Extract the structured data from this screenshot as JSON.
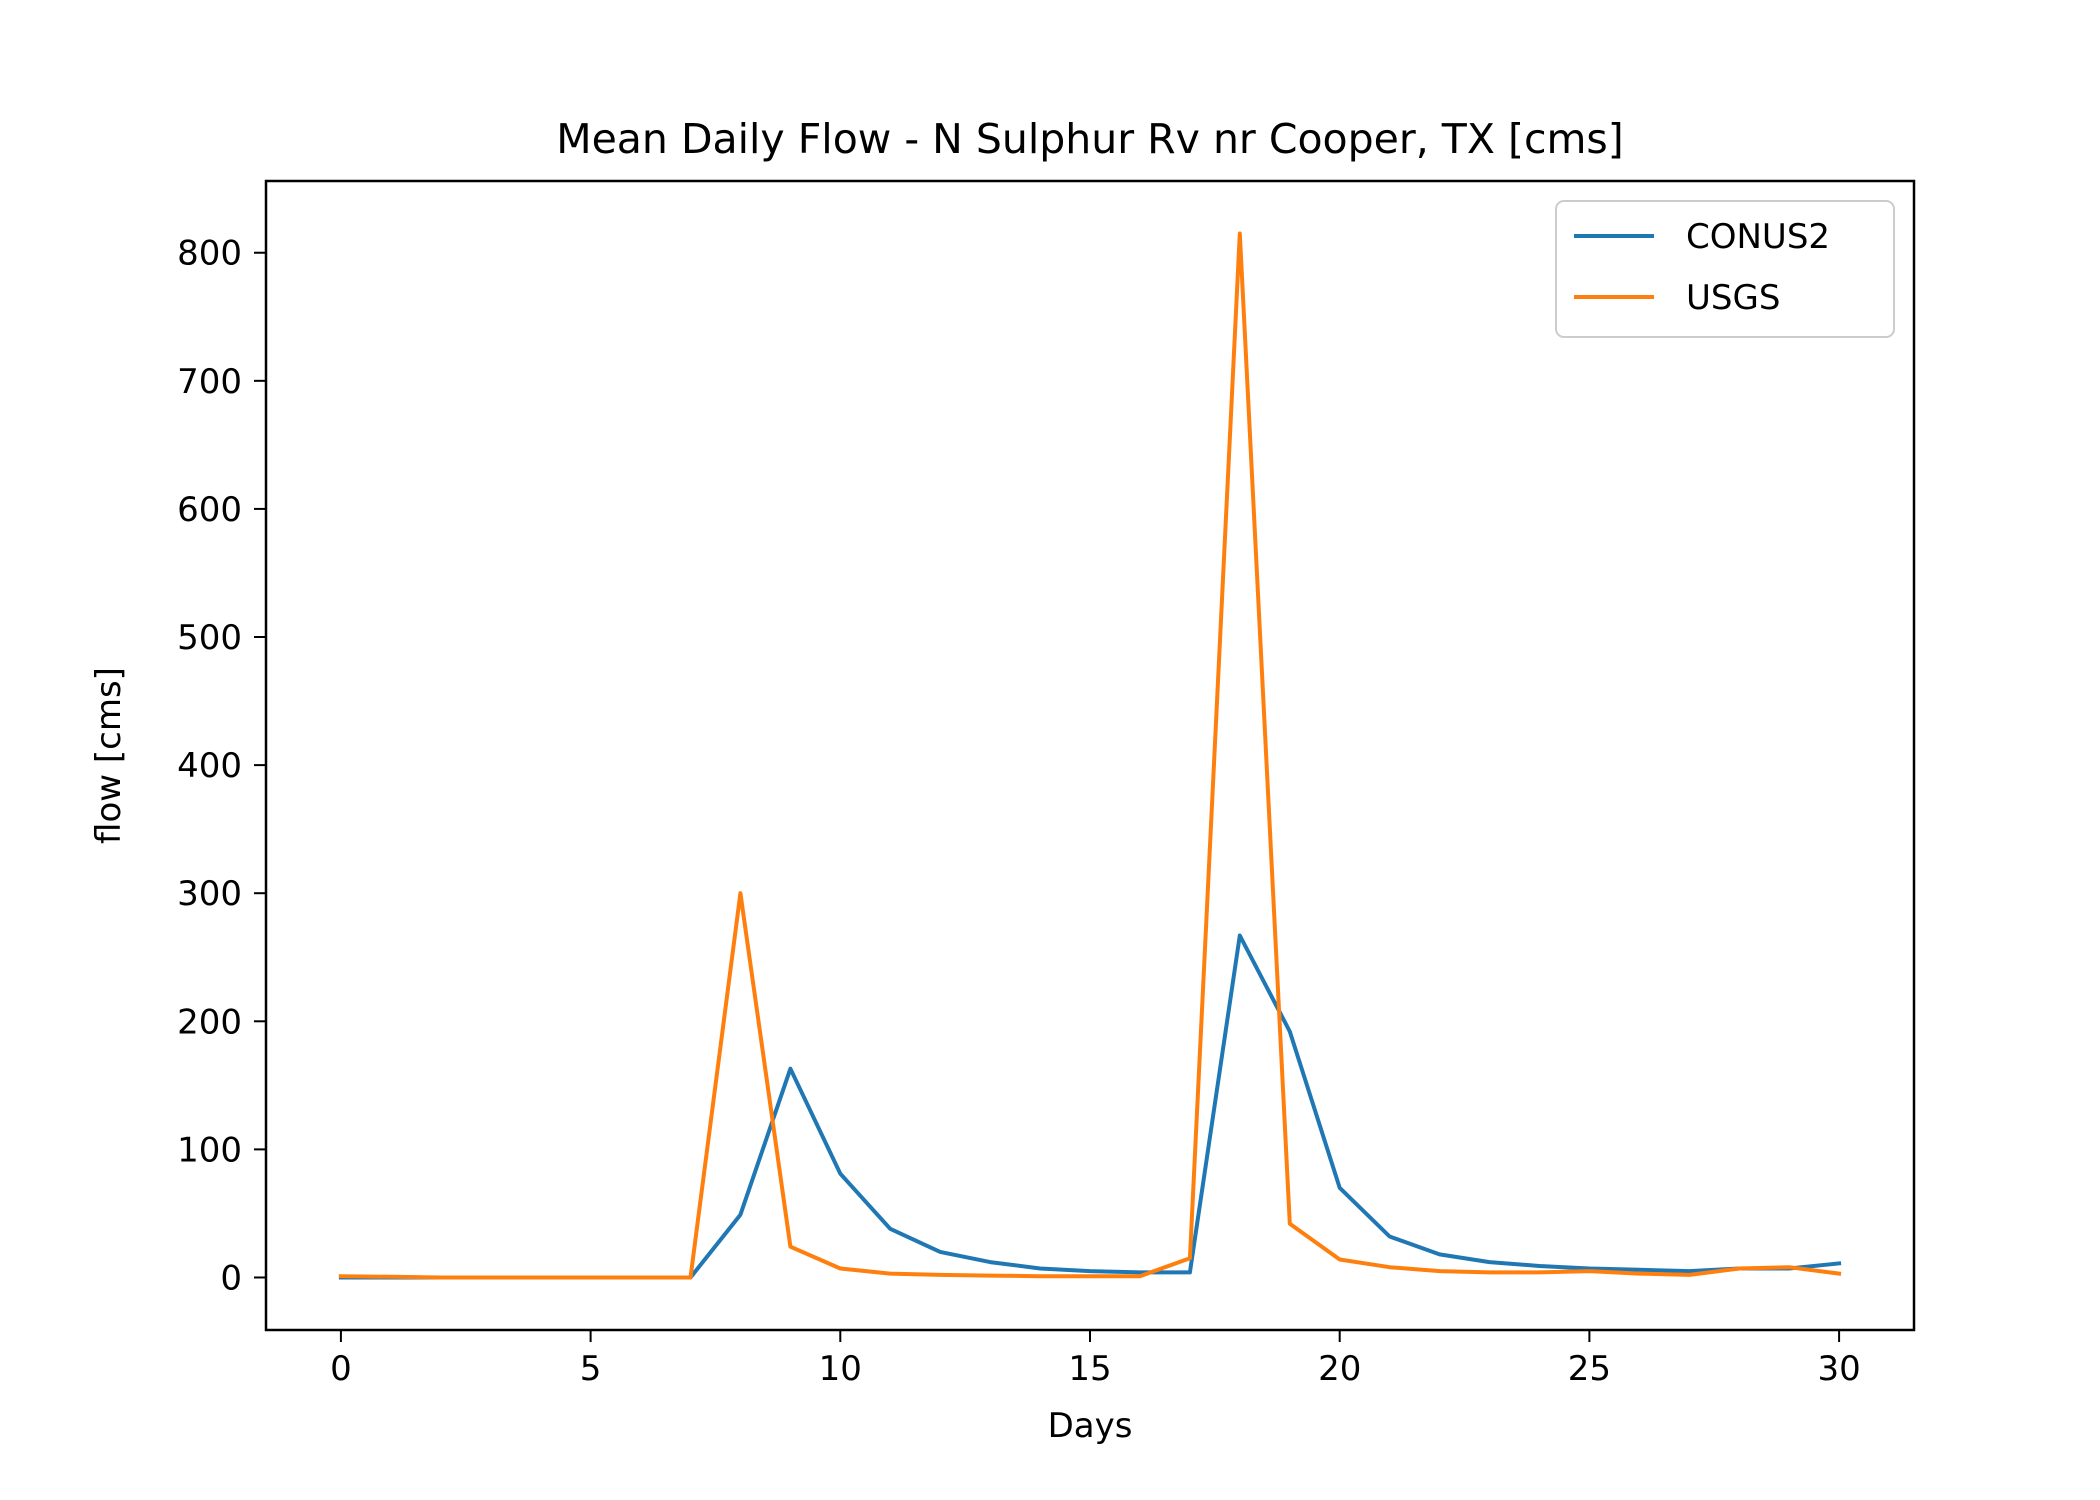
{
  "chart_data": {
    "type": "line",
    "title": "Mean Daily Flow - N Sulphur Rv nr Cooper, TX [cms]",
    "xlabel": "Days",
    "ylabel": "flow [cms]",
    "xlim": [
      -1.5,
      31.5
    ],
    "ylim": [
      -41,
      856
    ],
    "xticks": [
      0,
      5,
      10,
      15,
      20,
      25,
      30
    ],
    "yticks": [
      0,
      100,
      200,
      300,
      400,
      500,
      600,
      700,
      800
    ],
    "grid": false,
    "legend_position": "top-right",
    "x": [
      0,
      1,
      2,
      3,
      4,
      5,
      6,
      7,
      8,
      9,
      10,
      11,
      12,
      13,
      14,
      15,
      16,
      17,
      18,
      19,
      20,
      21,
      22,
      23,
      24,
      25,
      26,
      27,
      28,
      29,
      30
    ],
    "series": [
      {
        "name": "CONUS2",
        "color": "#1f77b4",
        "values": [
          0,
          0,
          0,
          0,
          0,
          0,
          0,
          0,
          49,
          163,
          81,
          38,
          20,
          12,
          7,
          5,
          4,
          4,
          267,
          192,
          70,
          32,
          18,
          12,
          9,
          7,
          6,
          5,
          7,
          7,
          11
        ]
      },
      {
        "name": "USGS",
        "color": "#ff7f0e",
        "values": [
          1,
          0.5,
          0,
          0,
          0,
          0,
          0,
          0,
          300,
          24,
          7,
          3,
          2,
          1.5,
          1,
          1,
          1,
          15,
          815,
          42,
          14,
          8,
          5,
          4,
          4,
          5,
          3,
          2,
          7,
          8,
          3
        ]
      }
    ]
  }
}
